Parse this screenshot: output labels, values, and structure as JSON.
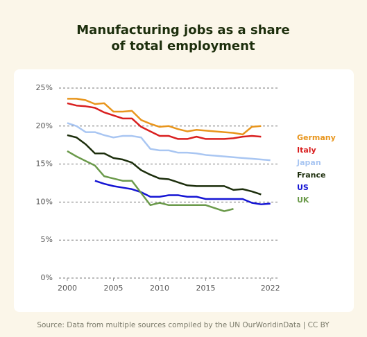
{
  "chart_data": {
    "type": "line",
    "title": [
      "Manufacturing jobs as a share",
      "of total employment"
    ],
    "source": "Source: Data from multiple sources compiled by the UN OurWorldinData | CC BY",
    "x": [
      2000,
      2001,
      2002,
      2003,
      2004,
      2005,
      2006,
      2007,
      2008,
      2009,
      2010,
      2011,
      2012,
      2013,
      2014,
      2015,
      2016,
      2017,
      2018,
      2019,
      2020,
      2021,
      2022
    ],
    "series": [
      {
        "name": "Germany",
        "color": "#e8951c",
        "values": [
          23.6,
          23.6,
          23.4,
          22.9,
          23.0,
          21.9,
          21.9,
          22.0,
          20.8,
          20.3,
          19.9,
          20.0,
          19.6,
          19.3,
          19.5,
          19.4,
          19.3,
          19.2,
          19.1,
          18.9,
          19.9,
          20.0,
          null
        ]
      },
      {
        "name": "Italy",
        "color": "#d91f1f",
        "values": [
          23.0,
          22.7,
          22.6,
          22.4,
          21.8,
          21.4,
          21.0,
          21.0,
          19.9,
          19.3,
          18.7,
          18.7,
          18.3,
          18.3,
          18.6,
          18.3,
          18.3,
          18.3,
          18.4,
          18.6,
          18.7,
          18.6,
          null
        ]
      },
      {
        "name": "Japan",
        "color": "#a9c6f2",
        "values": [
          20.4,
          20.0,
          19.2,
          19.2,
          18.8,
          18.5,
          18.7,
          18.7,
          18.5,
          17.0,
          16.8,
          16.8,
          16.5,
          16.5,
          16.4,
          16.2,
          16.1,
          16.0,
          15.9,
          15.8,
          15.7,
          15.6,
          15.5
        ]
      },
      {
        "name": "France",
        "color": "#1c2e0c",
        "values": [
          18.8,
          18.5,
          17.6,
          16.4,
          16.4,
          15.8,
          15.6,
          15.2,
          14.2,
          13.6,
          13.1,
          13.0,
          12.6,
          12.2,
          12.1,
          12.1,
          12.1,
          12.1,
          11.6,
          11.7,
          11.4,
          11.0,
          null
        ]
      },
      {
        "name": "US",
        "color": "#1515d4",
        "values": [
          null,
          null,
          null,
          12.8,
          12.4,
          12.1,
          11.9,
          11.7,
          11.3,
          10.7,
          10.7,
          10.9,
          10.9,
          10.7,
          10.7,
          10.4,
          10.4,
          10.4,
          10.4,
          10.4,
          9.9,
          9.7,
          9.8
        ]
      },
      {
        "name": "UK",
        "color": "#6b9a4b",
        "values": [
          16.7,
          16.0,
          15.4,
          14.8,
          13.4,
          13.1,
          12.8,
          12.8,
          11.2,
          9.6,
          9.9,
          9.6,
          9.6,
          9.6,
          9.6,
          9.6,
          9.2,
          8.8,
          9.1,
          null,
          null,
          null,
          null
        ]
      }
    ],
    "xlim": [
      1999.1,
      2023.0
    ],
    "xticks": [
      2000,
      2005,
      2010,
      2015,
      2022
    ],
    "ylim": [
      0,
      25
    ],
    "yticks": [
      {
        "value": 0,
        "label": "0%"
      },
      {
        "value": 5,
        "label": "5%"
      },
      {
        "value": 10,
        "label": "10%"
      },
      {
        "value": 15,
        "label": "15%"
      },
      {
        "value": 20,
        "label": "20%"
      },
      {
        "value": 25,
        "label": "25%"
      }
    ],
    "grid": true
  }
}
